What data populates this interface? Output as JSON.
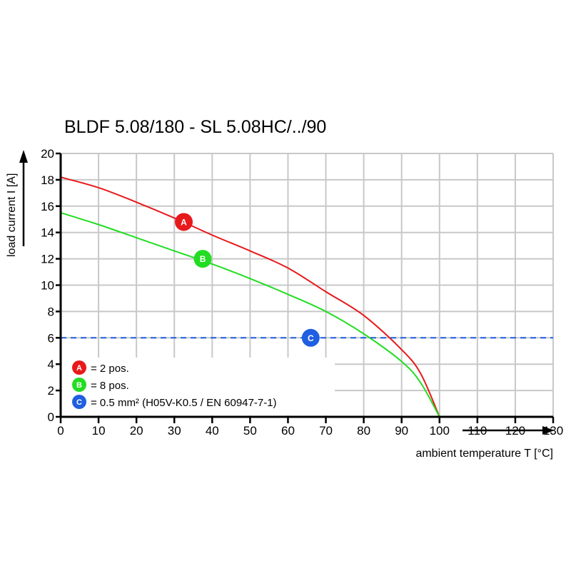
{
  "chart_data": {
    "type": "line",
    "title": "BLDF 5.08/180 - SL 5.08HC/../90",
    "xlabel": "ambient temperature T [°C]",
    "ylabel": "load current I [A]",
    "xlim": [
      0,
      130
    ],
    "ylim": [
      0,
      20
    ],
    "xticks": [
      0,
      10,
      20,
      30,
      40,
      50,
      60,
      70,
      80,
      90,
      100,
      110,
      120,
      130
    ],
    "yticks": [
      0,
      2,
      4,
      6,
      8,
      10,
      12,
      14,
      16,
      18,
      20
    ],
    "grid": true,
    "series": [
      {
        "name": "A",
        "color": "#e8191b",
        "x": [
          0,
          10,
          20,
          30,
          40,
          50,
          60,
          70,
          80,
          90,
          95,
          100
        ],
        "y": [
          18.2,
          17.4,
          16.3,
          15.1,
          13.8,
          12.6,
          11.3,
          9.5,
          7.7,
          5.1,
          3.3,
          0
        ],
        "marker": {
          "label": "A",
          "x": 32.5,
          "y": 14.8
        }
      },
      {
        "name": "B",
        "color": "#22dd22",
        "x": [
          0,
          10,
          20,
          30,
          40,
          50,
          60,
          70,
          80,
          90,
          95,
          100
        ],
        "y": [
          15.5,
          14.6,
          13.6,
          12.6,
          11.6,
          10.5,
          9.3,
          8.0,
          6.3,
          4.2,
          2.6,
          0
        ],
        "marker": {
          "label": "B",
          "x": 37.5,
          "y": 12
        }
      },
      {
        "name": "C",
        "color": "#1f5fe0",
        "style": "dashed",
        "x": [
          0,
          130
        ],
        "y": [
          6,
          6
        ],
        "marker": {
          "label": "C",
          "x": 66,
          "y": 6
        }
      }
    ],
    "legend": {
      "placement": "bottom-left",
      "entries": [
        {
          "label": "A",
          "text": "= 2 pos.",
          "color": "#e8191b"
        },
        {
          "label": "B",
          "text": "= 8 pos.",
          "color": "#22dd22"
        },
        {
          "label": "C",
          "text": "= 0.5 mm² (H05V-K0.5 / EN 60947-7-1)",
          "color": "#1f5fe0"
        }
      ]
    }
  }
}
